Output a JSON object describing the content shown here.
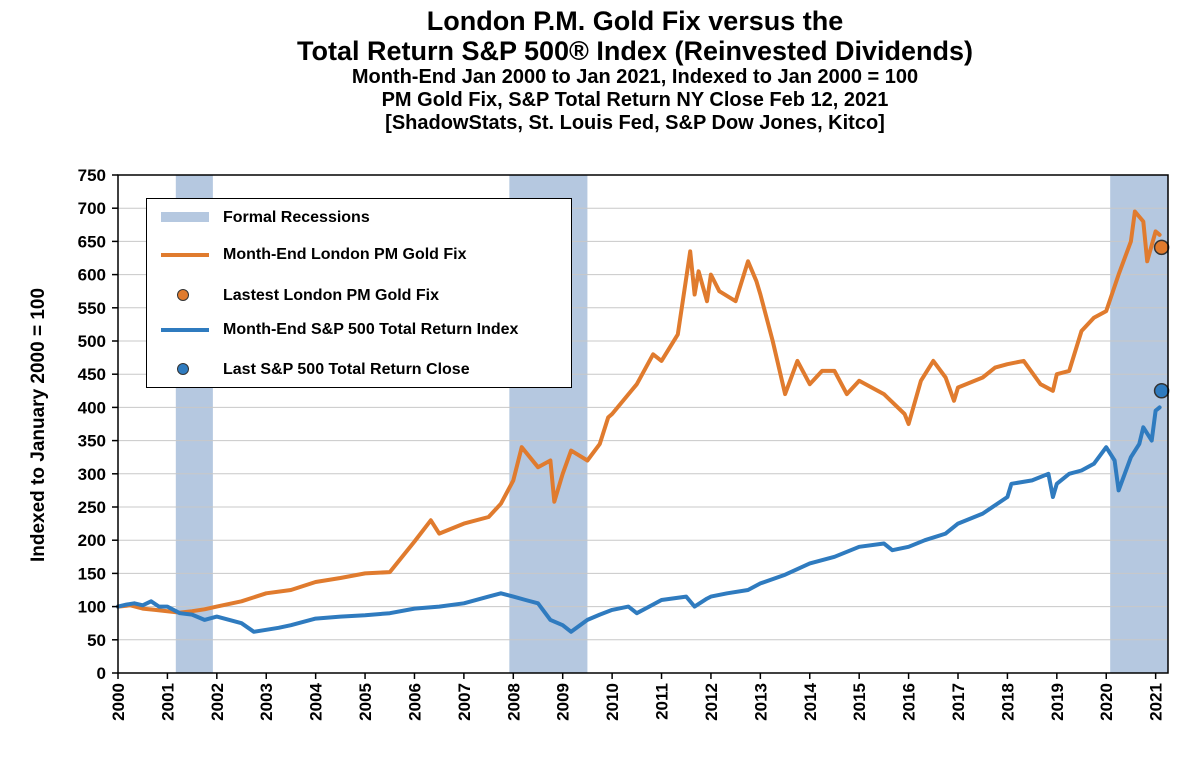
{
  "title": {
    "line1": "London P.M. Gold Fix versus the",
    "line2": "Total Return S&P 500® Index (Reinvested Dividends)",
    "line3": "Month-End Jan 2000 to Jan 2021, Indexed to Jan 2000 = 100",
    "line4": "PM Gold Fix, S&P Total Return NY Close Feb 12, 2021",
    "line5": "[ShadowStats, St. Louis Fed, S&P Dow Jones, Kitco]"
  },
  "legend": {
    "recessions": "Formal Recessions",
    "gold_line": "Month-End London PM Gold Fix",
    "gold_dot": "Lastest London PM Gold Fix",
    "sp_line": "Month-End S&P 500 Total Return Index",
    "sp_dot": "Last S&P 500 Total Return Close"
  },
  "colors": {
    "gold": "#e07b2e",
    "sp500": "#2f7bbf",
    "recession": "#b5c8e0",
    "grid": "#c8c8c8"
  },
  "chart_data": {
    "type": "line",
    "title": "London P.M. Gold Fix versus the Total Return S&P 500® Index (Reinvested Dividends)",
    "xlabel": "",
    "ylabel": "Indexed to January 2000 = 100",
    "xlim": [
      2000,
      2021.25
    ],
    "ylim": [
      0,
      750
    ],
    "yticks": [
      0,
      50,
      100,
      150,
      200,
      250,
      300,
      350,
      400,
      450,
      500,
      550,
      600,
      650,
      700,
      750
    ],
    "xticks": [
      "2000",
      "2001",
      "2002",
      "2003",
      "2004",
      "2005",
      "2006",
      "2007",
      "2008",
      "2009",
      "2010",
      "2011",
      "2012",
      "2013",
      "2014",
      "2015",
      "2016",
      "2017",
      "2018",
      "2019",
      "2020",
      "2021"
    ],
    "grid": "horizontal",
    "legend_position": "upper-left",
    "recessions": [
      [
        2001.17,
        2001.92
      ],
      [
        2007.92,
        2009.5
      ],
      [
        2020.08,
        2021.25
      ]
    ],
    "series": [
      {
        "name": "Month-End London PM Gold Fix",
        "x": [
          2000.0,
          2000.25,
          2000.5,
          2000.75,
          2001.0,
          2001.25,
          2001.5,
          2001.75,
          2002.0,
          2002.5,
          2003.0,
          2003.5,
          2004.0,
          2004.5,
          2005.0,
          2005.5,
          2006.0,
          2006.33,
          2006.5,
          2007.0,
          2007.5,
          2007.75,
          2008.0,
          2008.17,
          2008.5,
          2008.75,
          2008.83,
          2009.0,
          2009.17,
          2009.5,
          2009.75,
          2009.92,
          2010.0,
          2010.5,
          2010.83,
          2011.0,
          2011.33,
          2011.58,
          2011.67,
          2011.75,
          2011.92,
          2012.0,
          2012.17,
          2012.5,
          2012.75,
          2012.92,
          2013.0,
          2013.25,
          2013.5,
          2013.75,
          2014.0,
          2014.25,
          2014.5,
          2014.75,
          2015.0,
          2015.5,
          2015.92,
          2016.0,
          2016.25,
          2016.5,
          2016.75,
          2016.92,
          2017.0,
          2017.5,
          2017.75,
          2018.0,
          2018.33,
          2018.67,
          2018.92,
          2019.0,
          2019.25,
          2019.5,
          2019.75,
          2020.0,
          2020.25,
          2020.5,
          2020.58,
          2020.75,
          2020.83,
          2021.0,
          2021.08
        ],
        "y": [
          100,
          102,
          97,
          95,
          93,
          91,
          93,
          96,
          100,
          108,
          120,
          125,
          137,
          143,
          150,
          152,
          198,
          230,
          210,
          225,
          235,
          255,
          290,
          340,
          310,
          320,
          258,
          300,
          335,
          320,
          345,
          385,
          390,
          435,
          480,
          470,
          510,
          635,
          570,
          605,
          560,
          600,
          575,
          560,
          620,
          590,
          570,
          500,
          420,
          470,
          435,
          455,
          455,
          420,
          440,
          420,
          390,
          375,
          440,
          470,
          445,
          410,
          430,
          445,
          460,
          465,
          470,
          435,
          425,
          450,
          455,
          515,
          535,
          545,
          600,
          650,
          695,
          680,
          620,
          665,
          660
        ]
      },
      {
        "name": "Month-End S&P 500 Total Return Index",
        "x": [
          2000.0,
          2000.17,
          2000.33,
          2000.5,
          2000.67,
          2000.83,
          2001.0,
          2001.25,
          2001.5,
          2001.75,
          2002.0,
          2002.5,
          2002.75,
          2003.0,
          2003.25,
          2003.5,
          2004.0,
          2004.5,
          2005.0,
          2005.5,
          2006.0,
          2006.5,
          2007.0,
          2007.5,
          2007.75,
          2008.0,
          2008.25,
          2008.5,
          2008.75,
          2009.0,
          2009.17,
          2009.5,
          2009.75,
          2010.0,
          2010.33,
          2010.5,
          2010.75,
          2011.0,
          2011.5,
          2011.67,
          2011.92,
          2012.0,
          2012.33,
          2012.75,
          2013.0,
          2013.5,
          2014.0,
          2014.5,
          2015.0,
          2015.5,
          2015.67,
          2016.0,
          2016.33,
          2016.75,
          2017.0,
          2017.5,
          2018.0,
          2018.08,
          2018.5,
          2018.83,
          2018.92,
          2019.0,
          2019.25,
          2019.5,
          2019.75,
          2020.0,
          2020.17,
          2020.25,
          2020.5,
          2020.67,
          2020.75,
          2020.92,
          2021.0,
          2021.08
        ],
        "y": [
          100,
          103,
          105,
          102,
          108,
          100,
          100,
          90,
          88,
          80,
          85,
          75,
          62,
          65,
          68,
          72,
          82,
          85,
          87,
          90,
          97,
          100,
          105,
          115,
          120,
          115,
          110,
          105,
          80,
          72,
          62,
          80,
          88,
          95,
          100,
          90,
          100,
          110,
          115,
          100,
          112,
          115,
          120,
          125,
          135,
          148,
          165,
          175,
          190,
          195,
          185,
          190,
          200,
          210,
          225,
          240,
          265,
          285,
          290,
          300,
          265,
          285,
          300,
          305,
          315,
          340,
          320,
          275,
          325,
          345,
          370,
          350,
          395,
          400
        ]
      }
    ],
    "markers": [
      {
        "name": "Lastest London PM Gold Fix",
        "x": 2021.12,
        "y": 641
      },
      {
        "name": "Last S&P 500 Total Return Close",
        "x": 2021.12,
        "y": 425
      }
    ]
  }
}
